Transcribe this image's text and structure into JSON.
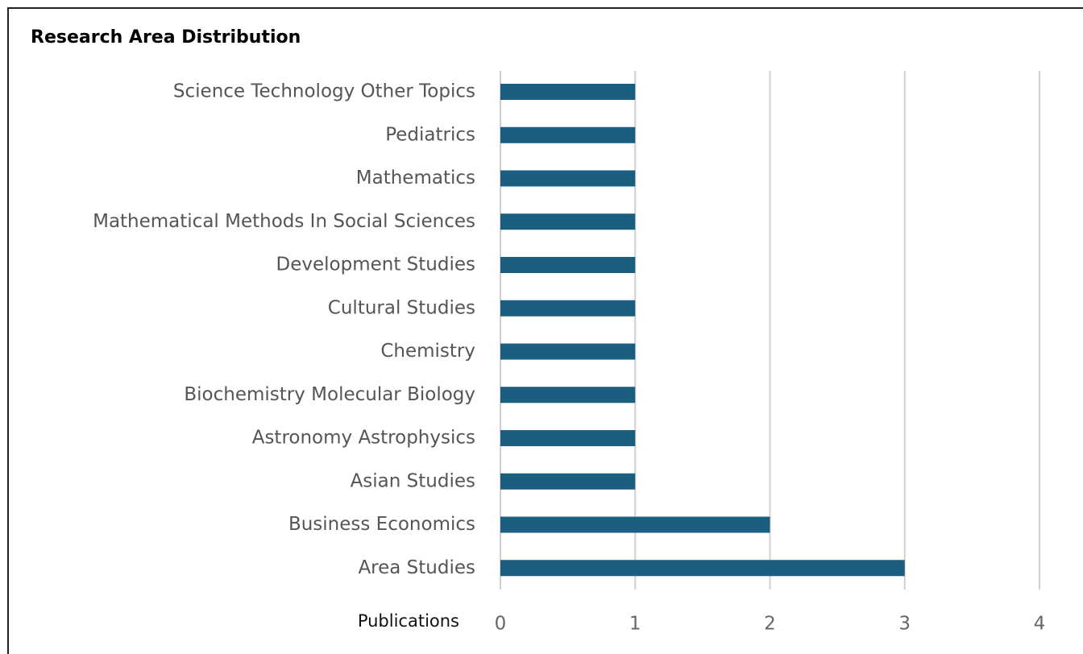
{
  "chart_data": {
    "type": "bar",
    "orientation": "horizontal",
    "title": "Research Area Distribution",
    "x_label": "Publications",
    "categories": [
      "Science Technology Other Topics",
      "Pediatrics",
      "Mathematics",
      "Mathematical Methods In Social Sciences",
      "Development Studies",
      "Cultural Studies",
      "Chemistry",
      "Biochemistry Molecular Biology",
      "Astronomy Astrophysics",
      "Asian Studies",
      "Business Economics",
      "Area Studies"
    ],
    "values": [
      1,
      1,
      1,
      1,
      1,
      1,
      1,
      1,
      1,
      1,
      2,
      3
    ],
    "color": "#1b5e80",
    "xlim": [
      0,
      4
    ],
    "xticks": [
      0,
      1,
      2,
      3,
      4
    ],
    "grid": true
  }
}
